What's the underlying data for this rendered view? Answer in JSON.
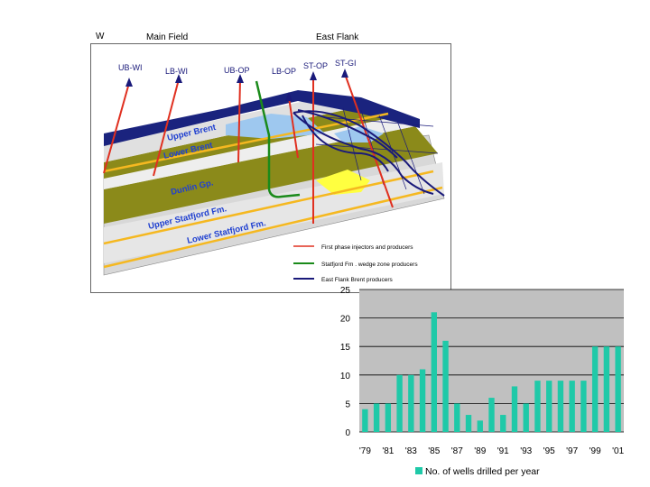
{
  "cross_section": {
    "labels": {
      "west": "W",
      "main_field": "Main Field",
      "east_flank": "East Flank"
    },
    "wells": [
      "UB-WI",
      "LB-WI",
      "UB-OP",
      "LB-OP",
      "ST-OP",
      "ST-GI"
    ],
    "formations": [
      "Upper Brent",
      "Lower Brent",
      "Dunlin Gp.",
      "Upper Statfjord Fm.",
      "Lower Statfjord Fm."
    ],
    "legend": [
      {
        "label": "First phase injectors and producers",
        "color": "#e03020"
      },
      {
        "label": "Statfjord Fm . wedge zone producers",
        "color": "#1a8a1a"
      },
      {
        "label": "East Flank Brent producers",
        "color": "#1a1a7a"
      }
    ]
  },
  "chart_data": {
    "type": "bar",
    "categories": [
      "'79",
      "'80",
      "'81",
      "'82",
      "'83",
      "'84",
      "'85",
      "'86",
      "'87",
      "'88",
      "'89",
      "'90",
      "'91",
      "'92",
      "'93",
      "'94",
      "'95",
      "'96",
      "'97",
      "'98",
      "'99",
      "'00",
      "'01"
    ],
    "tick_labels": [
      "'79",
      "'81",
      "'83",
      "'85",
      "'87",
      "'89",
      "'91",
      "'93",
      "'95",
      "'97",
      "'99",
      "'01"
    ],
    "values": [
      4,
      5,
      5,
      10,
      10,
      11,
      21,
      16,
      5,
      3,
      2,
      6,
      3,
      8,
      5,
      9,
      9,
      9,
      9,
      9,
      15,
      15,
      15
    ],
    "ylim": [
      0,
      25
    ],
    "yticks": [
      0,
      5,
      10,
      15,
      20,
      25
    ],
    "grid": true,
    "legend": {
      "position": "bottom",
      "label": "No. of wells drilled per year"
    },
    "colors": {
      "bar": "#1fc9a8",
      "plot_bg": "#c0c0c0",
      "grid": "#000000"
    }
  }
}
